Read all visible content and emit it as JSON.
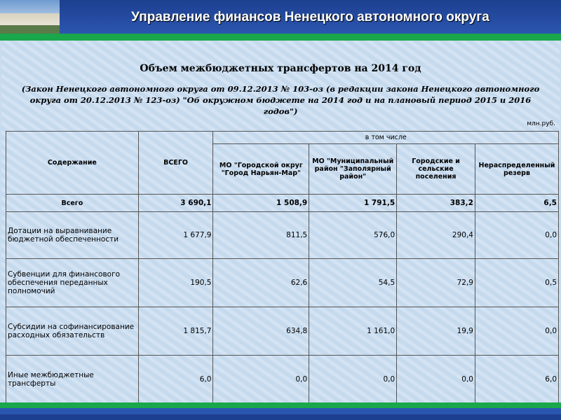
{
  "header": {
    "title": "Управление финансов Ненецкого автономного округа"
  },
  "document": {
    "title": "Объем межбюджетных трансфертов на 2014 год",
    "subtitle": "(Закон Ненецкого автономного округа от 09.12.2013 № 103-оз (в редакции закона Ненецкого автономного округа от 20.12.2013 № 123-оз) \"Об окружном бюджете на 2014 год и на плановый период 2015 и 2016 годов\")",
    "unit": "млн.руб."
  },
  "table": {
    "columns": [
      "Содержание",
      "ВСЕГО"
    ],
    "group": "в том числе",
    "subcolumns": [
      "МО \"Городской округ \"Город Нарьян-Мар\"",
      "МО \"Муниципальный район \"Заполярный район\"",
      "Городские и сельские поселения",
      "Нераспределенный резерв"
    ],
    "rows": [
      [
        "Всего",
        "3 690,1",
        "1 508,9",
        "1 791,5",
        "383,2",
        "6,5"
      ],
      [
        "Дотации на выравнивание бюджетной обеспеченности",
        "1 677,9",
        "811,5",
        "576,0",
        "290,4",
        "0,0"
      ],
      [
        "Субвенции для финансового обеспечения переданных полномочий",
        "190,5",
        "62,6",
        "54,5",
        "72,9",
        "0,5"
      ],
      [
        "Субсидии на софинансирование расходных обязательств",
        "1 815,7",
        "634,8",
        "1 161,0",
        "19,9",
        "0,0"
      ],
      [
        "Иные межбюджетные трансферты",
        "6,0",
        "0,0",
        "0,0",
        "0,0",
        "6,0"
      ]
    ]
  }
}
